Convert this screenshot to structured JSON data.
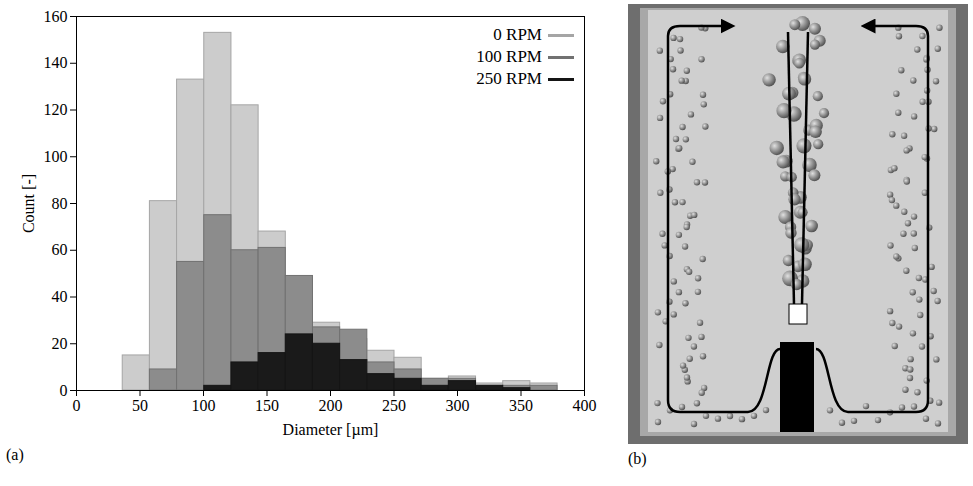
{
  "chart_data": {
    "type": "histogram",
    "panel_label": "(a)",
    "xlabel": "Diameter [µm]",
    "ylabel": "Count [-]",
    "bins": [
      15,
      36.4,
      57.8,
      79.2,
      100.6,
      122,
      143.4,
      164.8,
      186.2,
      207.6,
      229,
      250.4,
      271.8,
      293.2,
      314.6,
      336,
      357.4,
      378.8
    ],
    "series": [
      {
        "name": "0 RPM",
        "color": "#cccccc",
        "values": [
          0,
          15,
          81,
          133,
          153,
          122,
          68,
          40,
          29,
          22,
          17,
          14,
          5,
          6,
          3,
          4,
          3
        ]
      },
      {
        "name": "100 RPM",
        "color": "#8c8c8c",
        "values": [
          0,
          0,
          9,
          55,
          75,
          60,
          61,
          49,
          27,
          26,
          12,
          9,
          5,
          5,
          2,
          2,
          2
        ]
      },
      {
        "name": "250 RPM",
        "color": "#1a1a1a",
        "values": [
          0,
          0,
          0,
          0,
          2,
          12,
          16,
          24,
          20,
          13,
          7,
          5,
          2,
          4,
          2,
          1,
          0
        ]
      }
    ],
    "xlim": [
      0,
      400
    ],
    "ylim": [
      0,
      160
    ],
    "xticks": [
      0,
      50,
      100,
      150,
      200,
      250,
      300,
      350,
      400
    ],
    "yticks": [
      0,
      20,
      40,
      60,
      80,
      100,
      120,
      140,
      160
    ],
    "legend": "top-right",
    "grid": false
  },
  "diagram": {
    "panel_label": "(b)"
  }
}
